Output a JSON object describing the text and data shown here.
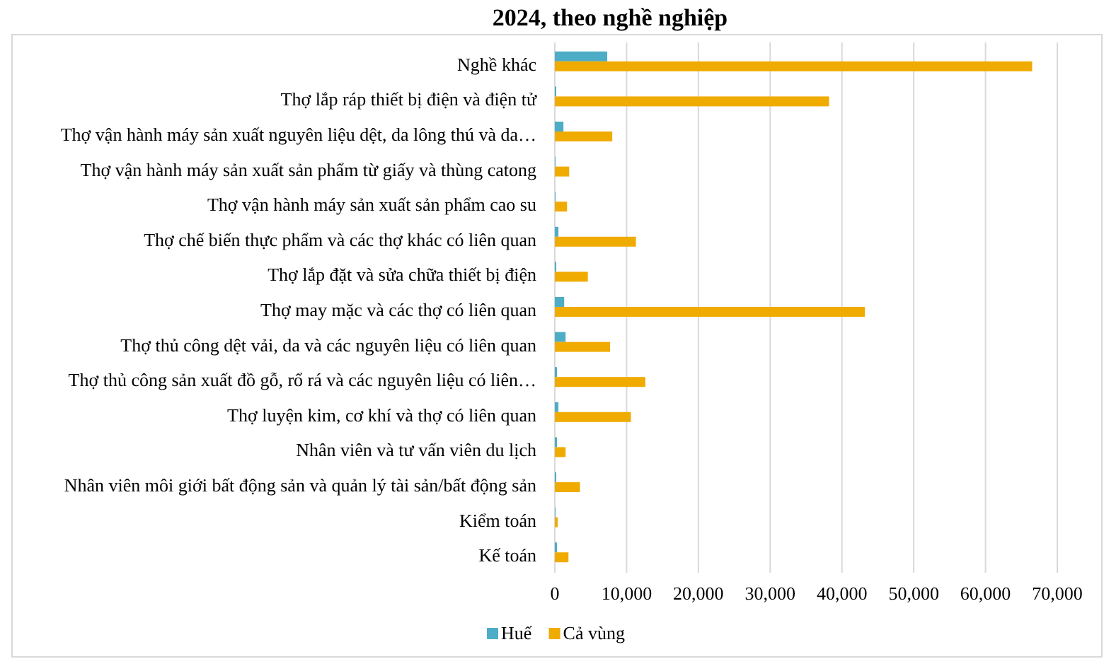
{
  "chart_data": {
    "type": "bar",
    "orientation": "horizontal",
    "title": "2024, theo nghề nghiệp",
    "categories": [
      "Nghề khác",
      "Thợ lắp ráp thiết bị điện và điện tử",
      "Thợ vận hành máy sản xuất nguyên liệu dệt, da lông thú và da…",
      "Thợ vận hành máy sản xuất sản phẩm từ giấy và thùng catong",
      "Thợ vận hành máy sản xuất sản phẩm cao su",
      "Thợ chế biến thực phẩm và các thợ khác có liên quan",
      "Thợ lắp đặt và sửa chữa thiết bị điện",
      "Thợ may mặc và các thợ có liên quan",
      "Thợ thủ công dệt vải, da và các nguyên liệu có liên quan",
      "Thợ thủ công sản xuất đồ gỗ, rổ rá và các nguyên liệu có liên…",
      "Thợ luyện kim, cơ khí và thợ có liên quan",
      "Nhân viên và tư vấn viên du lịch",
      "Nhân viên môi giới bất động sản và quản lý tài sản/bất động sản",
      "Kiểm toán",
      "Kế toán"
    ],
    "series": [
      {
        "name": "Huế",
        "color": "#4eadc6",
        "values": [
          7300,
          200,
          1200,
          100,
          100,
          500,
          200,
          1300,
          1500,
          300,
          500,
          300,
          200,
          100,
          300
        ]
      },
      {
        "name": "Cả vùng",
        "color": "#f0ab00",
        "values": [
          66500,
          38200,
          8000,
          2000,
          1700,
          11300,
          4600,
          43200,
          7700,
          12600,
          10600,
          1500,
          3500,
          400,
          1900
        ]
      }
    ],
    "xlim": [
      0,
      70000
    ],
    "xticks": [
      0,
      {
        "value": 10000,
        "label": "10,000"
      },
      {
        "value": 20000,
        "label": "20,000"
      },
      {
        "value": 30000,
        "label": "30,000"
      },
      {
        "value": 40000,
        "label": "40,000"
      },
      {
        "value": 50000,
        "label": "50,000"
      },
      {
        "value": 60000,
        "label": "60,000"
      },
      {
        "value": 70000,
        "label": "70,000"
      }
    ],
    "grid": "x",
    "legend": "bottom"
  }
}
